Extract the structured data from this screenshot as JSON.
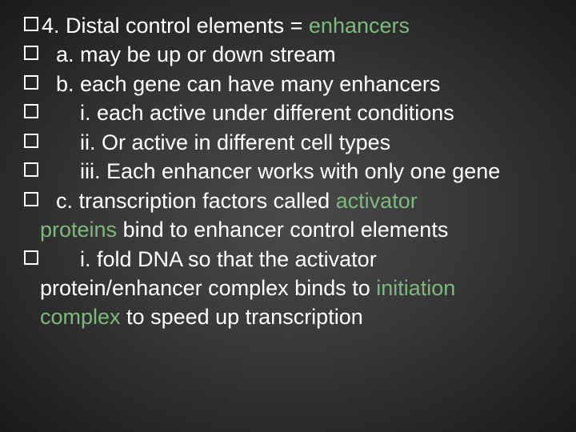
{
  "slide": {
    "background_gradient": [
      "#4a4a4a",
      "#3a3a3a",
      "#1a1a1a"
    ],
    "text_color": "#ffffff",
    "highlight_color": "#7fb97f",
    "font_size_pt": 27,
    "checkbox_border": "#ffffff",
    "lines": {
      "l1a": "4. Distal control elements = ",
      "l1b": "enhancers",
      "l2": "a. may be up or down stream",
      "l3": "b. each gene can have many enhancers",
      "l4": "i. each active under different conditions",
      "l5": "ii. Or active in different cell types",
      "l6": "iii. Each enhancer works with only one gene",
      "l7a": "c. transcription factors called ",
      "l7b": "activator",
      "l8a": "proteins",
      "l8b": " bind to enhancer control elements",
      "l9": "i. fold DNA so that the activator",
      "l10a": "protein/enhancer complex binds to ",
      "l10b": "initiation",
      "l11a": "complex",
      "l11b": " to speed up transcription"
    }
  }
}
